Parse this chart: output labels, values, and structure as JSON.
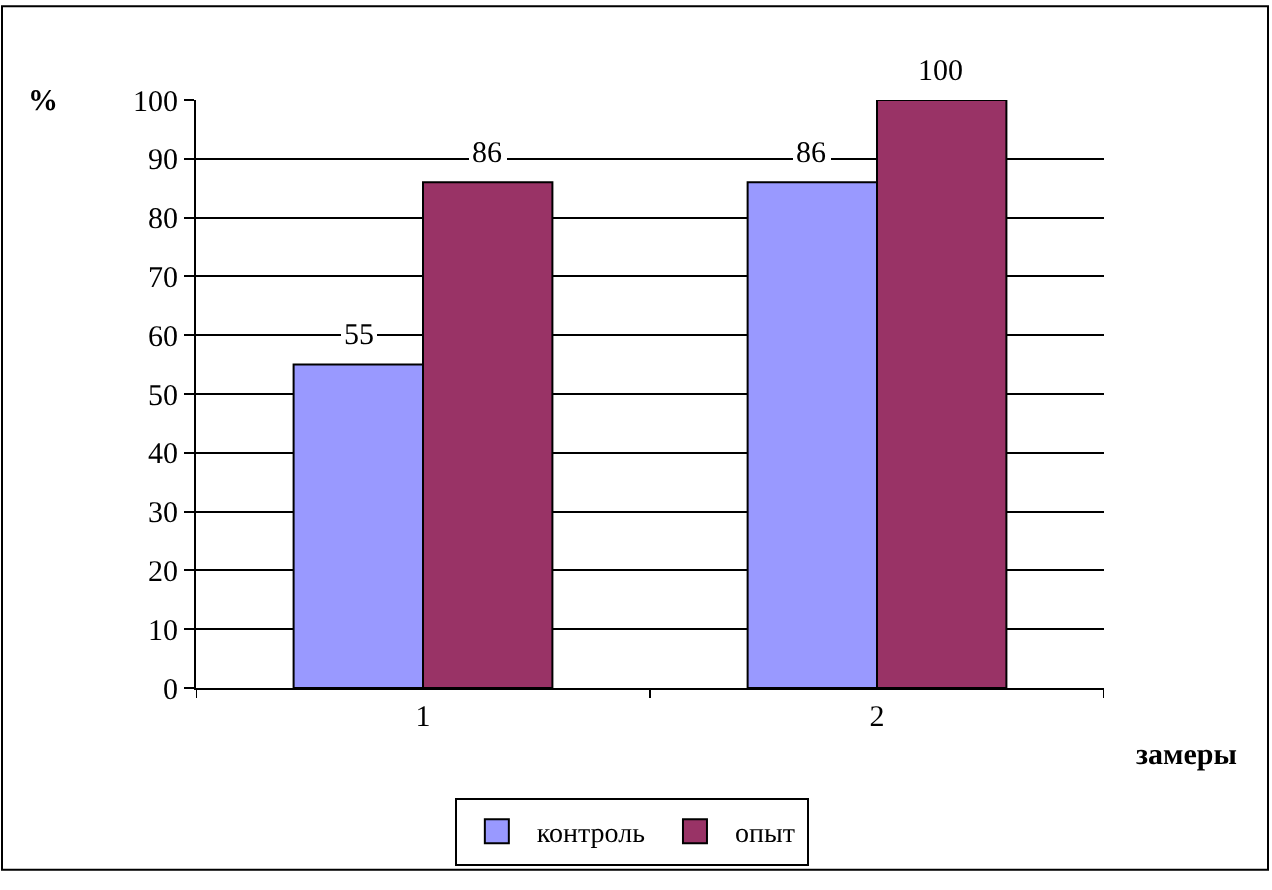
{
  "chart_data": {
    "type": "bar",
    "ylabel": "%",
    "xlabel": "замеры",
    "categories": [
      "1",
      "2"
    ],
    "series": [
      {
        "name": "контроль",
        "color": "#9999ff",
        "values": [
          55,
          86
        ]
      },
      {
        "name": "опыт",
        "color": "#993366",
        "values": [
          86,
          100
        ]
      }
    ],
    "ylim": [
      0,
      100
    ],
    "yticks": [
      0,
      10,
      20,
      30,
      40,
      50,
      60,
      70,
      80,
      90,
      100
    ],
    "grid": "y",
    "legend": "bottom",
    "data_labels": true
  }
}
